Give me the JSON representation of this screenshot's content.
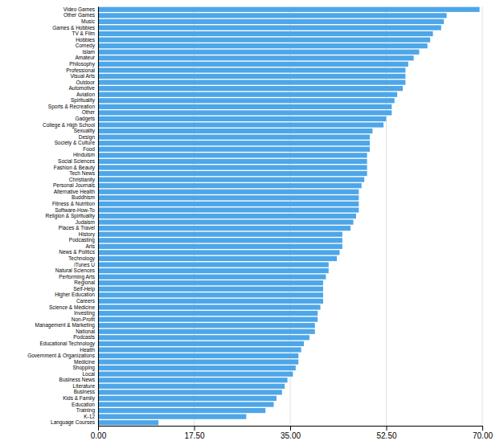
{
  "chart_data": {
    "type": "bar",
    "orientation": "horizontal",
    "categories": [
      "Video Games",
      "Other Games",
      "Music",
      "Games & Hobbies",
      "TV & Film",
      "Hobbies",
      "Comedy",
      "Islam",
      "Amateur",
      "Philosophy",
      "Professional",
      "Visual Arts",
      "Outdoor",
      "Automotive",
      "Aviation",
      "Spirituality",
      "Sports & Recreation",
      "Other",
      "Gadgets",
      "College & High School",
      "Sexuality",
      "Design",
      "Society & Culture",
      "Food",
      "Hinduism",
      "Social Sciences",
      "Fashion & Beauty",
      "Tech News",
      "Christianity",
      "Personal Journals",
      "Alternative Health",
      "Buddhism",
      "Fitness & Nutrition",
      "Software-How-To",
      "Religion & Spirituality",
      "Judaism",
      "Places & Travel",
      "History",
      "Podcasting",
      "Arts",
      "News & Politics",
      "Technology",
      "iTunes U",
      "Natural Sciences",
      "Performing Arts",
      "Regional",
      "Self-Help",
      "Higher Education",
      "Careers",
      "Science & Medicine",
      "Investing",
      "Non-Profit",
      "Management & Marketing",
      "National",
      "Podcasts",
      "Educational Technology",
      "Health",
      "Government & Organizations",
      "Medicine",
      "Shopping",
      "Local",
      "Business News",
      "Literature",
      "Business",
      "Kids & Family",
      "Education",
      "Training",
      "K-12",
      "Language Courses"
    ],
    "values": [
      69.5,
      63.5,
      63.0,
      62.5,
      61.0,
      60.5,
      60.0,
      58.5,
      57.5,
      56.5,
      56.0,
      56.0,
      56.0,
      55.5,
      54.5,
      54.0,
      53.5,
      53.5,
      52.5,
      52.0,
      50.0,
      49.5,
      49.5,
      49.5,
      49.0,
      49.0,
      49.0,
      49.0,
      48.5,
      48.0,
      47.5,
      47.5,
      47.5,
      47.5,
      47.0,
      46.5,
      46.0,
      44.5,
      44.5,
      44.5,
      44.0,
      43.5,
      42.0,
      42.0,
      41.5,
      41.0,
      41.0,
      41.0,
      41.0,
      40.5,
      40.0,
      40.0,
      39.5,
      39.5,
      38.5,
      37.5,
      37.0,
      36.5,
      36.5,
      36.0,
      35.5,
      34.5,
      34.0,
      33.5,
      32.5,
      32.0,
      30.5,
      27.0,
      11.0
    ],
    "color": "#4da6e8",
    "xlim": [
      0,
      70
    ],
    "xticks": [
      {
        "value": 0.0,
        "label": "0.00"
      },
      {
        "value": 17.5,
        "label": "17.50"
      },
      {
        "value": 35.0,
        "label": "35.00"
      },
      {
        "value": 52.5,
        "label": "52.50"
      },
      {
        "value": 70.0,
        "label": "70.00"
      }
    ],
    "grid": true
  }
}
